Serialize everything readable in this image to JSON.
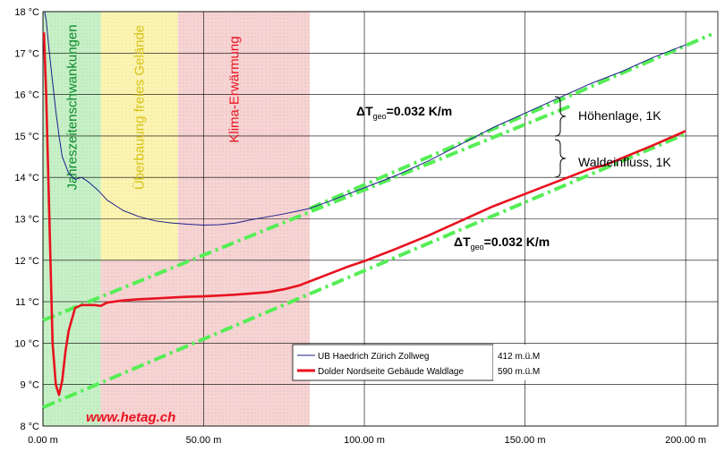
{
  "chart_data": {
    "type": "line",
    "x_unit": "m",
    "y_unit": "°C",
    "xlim": [
      0,
      210
    ],
    "ylim": [
      8,
      18
    ],
    "x_ticks": [
      0,
      50,
      100,
      150,
      200
    ],
    "x_tick_labels": [
      "0.00 m",
      "50.00 m",
      "100.00 m",
      "150.00 m",
      "200.00 m"
    ],
    "y_ticks": [
      8,
      9,
      10,
      11,
      12,
      13,
      14,
      15,
      16,
      17,
      18
    ],
    "y_tick_labels": [
      "8 °C",
      "9 °C",
      "10 °C",
      "11 °C",
      "12 °C",
      "13 °C",
      "14 °C",
      "15 °C",
      "16 °C",
      "17 °C",
      "18 °C"
    ],
    "grid": true,
    "zones": [
      {
        "label": "Jahreszeitenschwankungen",
        "x_range": [
          0,
          18
        ],
        "color": "#c8f0c8",
        "label_color": "#0a8a2a"
      },
      {
        "label": "Überbauung freies Gelände",
        "x_range": [
          18,
          42
        ],
        "color": "#fbf4b4",
        "label_color": "#d9c217"
      },
      {
        "label": "Klima-Erwärmung",
        "x_range": [
          42,
          83
        ],
        "color": "#f6d4d4",
        "label_color": "#e8121f"
      }
    ],
    "series": [
      {
        "name": "UB Haedrich Zürich Zollweg",
        "extra": "412 m.ü.M",
        "color": "#1c1f8a",
        "x": [
          0.5,
          1,
          2,
          3,
          4,
          5,
          6,
          8,
          10,
          12,
          14,
          17,
          20,
          25,
          30,
          35,
          40,
          45,
          50,
          55,
          60,
          65,
          70,
          75,
          80,
          83,
          90,
          100,
          110,
          120,
          130,
          140,
          150,
          160,
          170,
          180,
          190,
          200
        ],
        "y": [
          18,
          17.8,
          17.0,
          16.3,
          15.6,
          15.0,
          14.5,
          14.1,
          13.95,
          14.0,
          13.9,
          13.7,
          13.45,
          13.2,
          13.05,
          12.95,
          12.9,
          12.87,
          12.85,
          12.86,
          12.9,
          12.98,
          13.05,
          13.12,
          13.2,
          13.25,
          13.45,
          13.75,
          14.05,
          14.4,
          14.8,
          15.2,
          15.55,
          15.9,
          16.25,
          16.55,
          16.9,
          17.2
        ]
      },
      {
        "name": "Dolder Nordseite Gebäude Waldlage",
        "extra": "590 m.ü.M",
        "color": "#e8121f",
        "x": [
          0.3,
          1,
          2,
          3,
          4,
          5,
          6,
          7,
          8,
          10,
          12,
          14,
          16,
          18,
          20,
          25,
          30,
          35,
          40,
          45,
          50,
          55,
          60,
          65,
          70,
          75,
          80,
          85,
          90,
          95,
          100,
          110,
          120,
          130,
          140,
          150,
          160,
          170,
          175,
          190,
          200
        ],
        "y": [
          17.5,
          16.0,
          13.0,
          10.0,
          9.0,
          8.75,
          9.1,
          9.8,
          10.3,
          10.85,
          10.92,
          10.92,
          10.92,
          10.9,
          10.98,
          11.03,
          11.06,
          11.08,
          11.1,
          11.12,
          11.13,
          11.15,
          11.17,
          11.2,
          11.23,
          11.3,
          11.4,
          11.55,
          11.7,
          11.85,
          11.98,
          12.28,
          12.6,
          12.95,
          13.3,
          13.6,
          13.9,
          14.2,
          14.3,
          14.78,
          15.12
        ]
      }
    ],
    "reference_lines": [
      {
        "name": "geo-gradient-upper",
        "color": "#55ee55",
        "x": [
          83,
          208
        ],
        "y": [
          13.25,
          17.45
        ]
      },
      {
        "name": "geo-gradient-mid",
        "color": "#55ee55",
        "x": [
          0,
          165
        ],
        "y": [
          10.55,
          15.75
        ]
      },
      {
        "name": "geo-gradient-lower",
        "color": "#55ee55",
        "x": [
          0,
          200
        ],
        "y": [
          8.45,
          15.05
        ]
      }
    ],
    "annotations": {
      "dt_upper": {
        "prefix": "ΔT",
        "sub": "geo",
        "suffix": "=0.032 K/m"
      },
      "dt_lower": {
        "prefix": "ΔT",
        "sub": "geo",
        "suffix": "=0.032 K/m"
      },
      "hoehenlage": "Höhenlage, 1K",
      "waldeinfluss": "Waldeinfluss, 1K"
    },
    "watermark": "www.hetag.ch"
  }
}
